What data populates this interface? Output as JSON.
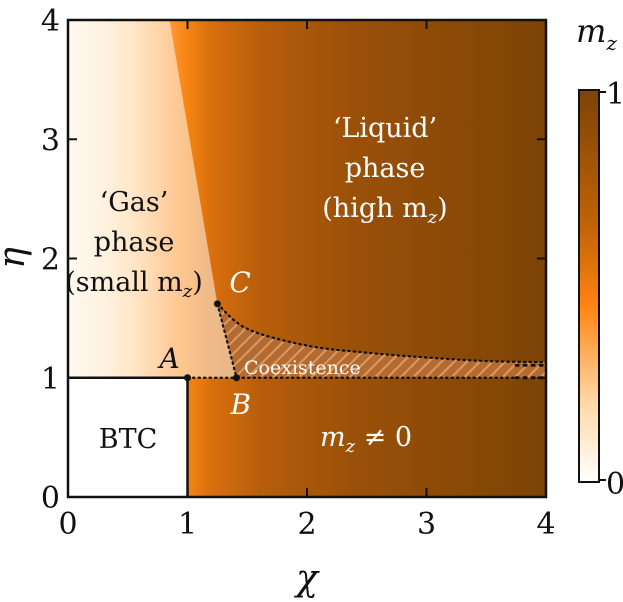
{
  "chart_data": {
    "type": "heatmap",
    "xlabel": "χ",
    "ylabel": "η",
    "xlim": [
      0,
      4
    ],
    "ylim": [
      0,
      4
    ],
    "xticks": [
      "0",
      "1",
      "2",
      "3",
      "4"
    ],
    "yticks": [
      "0",
      "1",
      "2",
      "3",
      "4"
    ],
    "colorbar": {
      "label": "m",
      "label_sub": "z",
      "min_label": "0",
      "max_label": "1",
      "range": [
        0,
        1
      ],
      "colors": [
        "#ffffff",
        "#ff8410",
        "#7c4406"
      ]
    },
    "regions": {
      "btc": "BTC",
      "gas": [
        "‘Gas’",
        "phase",
        "(small m",
        "z",
        ")"
      ],
      "liquid": [
        "‘Liquid’",
        "phase",
        "(high m",
        "z",
        ")"
      ],
      "nonzero": [
        "m",
        "z",
        " ≠ 0"
      ],
      "coexistence": "Coexistence"
    },
    "points": [
      {
        "label": "A",
        "x": 1.0,
        "y": 1.0
      },
      {
        "label": "B",
        "x": 1.41,
        "y": 1.0
      },
      {
        "label": "C",
        "x": 1.25,
        "y": 1.62
      }
    ],
    "coexistence_upper_boundary": [
      {
        "x": 1.25,
        "y": 1.62
      },
      {
        "x": 1.5,
        "y": 1.41
      },
      {
        "x": 2.0,
        "y": 1.27
      },
      {
        "x": 2.5,
        "y": 1.21
      },
      {
        "x": 3.0,
        "y": 1.17
      },
      {
        "x": 3.5,
        "y": 1.14
      },
      {
        "x": 4.0,
        "y": 1.13
      }
    ],
    "grid": false,
    "legend": "colorbar-right"
  }
}
